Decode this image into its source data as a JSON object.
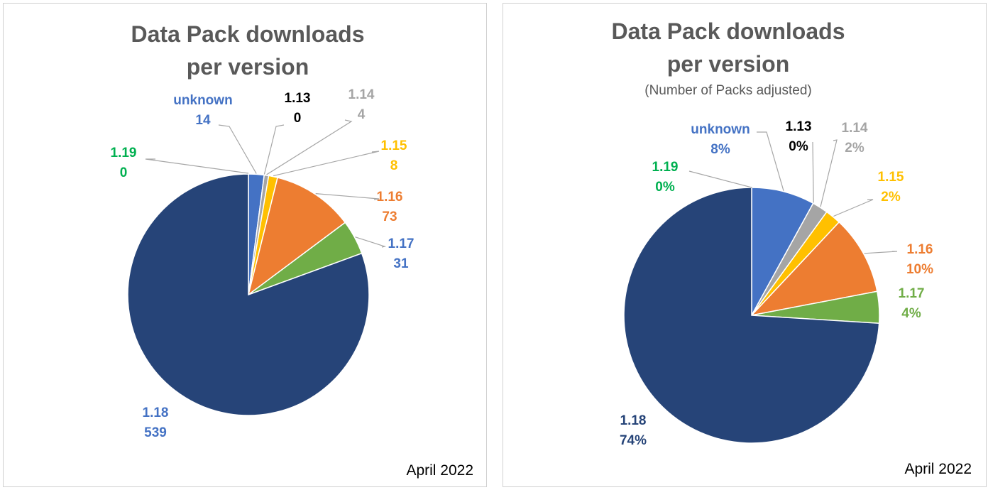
{
  "chart_data": [
    {
      "type": "pie",
      "title_line1": "Data Pack downloads",
      "title_line2": "per version",
      "subtitle": "",
      "footer": "April 2022",
      "slices": [
        {
          "label": "unknown",
          "value": 14,
          "display": "14",
          "color": "#4472C4"
        },
        {
          "label": "1.13",
          "value": 0,
          "display": "0",
          "color": "#000000"
        },
        {
          "label": "1.14",
          "value": 4,
          "display": "4",
          "color": "#A5A5A5"
        },
        {
          "label": "1.15",
          "value": 8,
          "display": "8",
          "color": "#FFC000"
        },
        {
          "label": "1.16",
          "value": 73,
          "display": "73",
          "color": "#ED7D31"
        },
        {
          "label": "1.17",
          "value": 31,
          "display": "31",
          "color": "#70AD47"
        },
        {
          "label": "1.18",
          "value": 539,
          "display": "539",
          "color": "#264478"
        },
        {
          "label": "1.19",
          "value": 0,
          "display": "0",
          "color": "#00B050"
        }
      ]
    },
    {
      "type": "pie",
      "title_line1": "Data Pack downloads",
      "title_line2": "per version",
      "subtitle": "(Number of Packs adjusted)",
      "footer": "April 2022",
      "slices": [
        {
          "label": "unknown",
          "value": 8,
          "display": "8%",
          "color": "#4472C4"
        },
        {
          "label": "1.13",
          "value": 0,
          "display": "0%",
          "color": "#000000"
        },
        {
          "label": "1.14",
          "value": 2,
          "display": "2%",
          "color": "#A5A5A5"
        },
        {
          "label": "1.15",
          "value": 2,
          "display": "2%",
          "color": "#FFC000"
        },
        {
          "label": "1.16",
          "value": 10,
          "display": "10%",
          "color": "#ED7D31"
        },
        {
          "label": "1.17",
          "value": 4,
          "display": "4%",
          "color": "#70AD47"
        },
        {
          "label": "1.18",
          "value": 74,
          "display": "74%",
          "color": "#264478"
        },
        {
          "label": "1.19",
          "value": 0,
          "display": "0%",
          "color": "#00B050"
        }
      ]
    }
  ]
}
